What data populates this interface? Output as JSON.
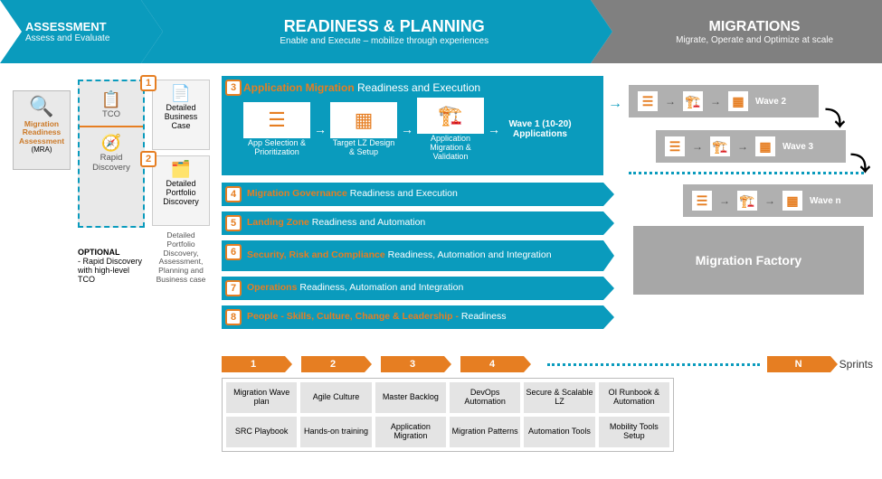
{
  "colors": {
    "teal": "#0a9bbd",
    "orange": "#e67e22",
    "grey": "#808080",
    "lightgrey": "#e9e9e9"
  },
  "phases": {
    "assess": {
      "title": "ASSESSMENT",
      "sub": "Assess and Evaluate"
    },
    "plan": {
      "title": "READINESS & PLANNING",
      "sub": "Enable and Execute – mobilize through experiences"
    },
    "migrate": {
      "title": "MIGRATIONS",
      "sub": "Migrate, Operate and Optimize at scale"
    }
  },
  "mra": {
    "title": "Migration Readiness Assessment",
    "sub": "(MRA)"
  },
  "optional": {
    "top": "TCO",
    "bottom": "Rapid Discovery",
    "caption_label": "OPTIONAL",
    "caption": "- Rapid Discovery with high-level TCO"
  },
  "detail": {
    "box1": {
      "num": "1",
      "label": "Detailed Business Case"
    },
    "box2": {
      "num": "2",
      "label": "Detailed Portfolio Discovery"
    },
    "caption": "Detailed Portfolio Discovery, Assessment, Planning and Business case"
  },
  "rp": {
    "num": "3",
    "title_orange": "Application Migration",
    "title_white": "Readiness and Execution",
    "nodes": [
      "App Selection & Prioritization",
      "Target LZ Design & Setup",
      "Application Migration & Validation"
    ],
    "wave": "Wave 1 (10-20) Applications"
  },
  "bars": [
    {
      "num": "4",
      "or": "Migration Governance",
      "wh": "Readiness and Execution"
    },
    {
      "num": "5",
      "or": "Landing Zone",
      "wh": "Readiness and Automation"
    },
    {
      "num": "6",
      "or": "Security, Risk and Compliance",
      "wh": "Readiness, Automation and Integration",
      "tall": true
    },
    {
      "num": "7",
      "or": "Operations",
      "wh": "Readiness, Automation and Integration"
    },
    {
      "num": "8",
      "or": "People - Skills, Culture, Change & Leadership -",
      "wh": "Readiness"
    }
  ],
  "sprints": {
    "nums": [
      "1",
      "2",
      "3",
      "4"
    ],
    "n": "N",
    "label": "Sprints"
  },
  "deliverables": [
    "Migration Wave plan",
    "Agile Culture",
    "Master Backlog",
    "DevOps Automation",
    "Secure & Scalable LZ",
    "OI Runbook & Automation",
    "SRC Playbook",
    "Hands-on training",
    "Application Migration",
    "Migration Patterns",
    "Automation Tools",
    "Mobility Tools Setup"
  ],
  "waves": {
    "w2": "Wave 2",
    "w3": "Wave 3",
    "wn": "Wave n"
  },
  "factory": "Migration Factory"
}
